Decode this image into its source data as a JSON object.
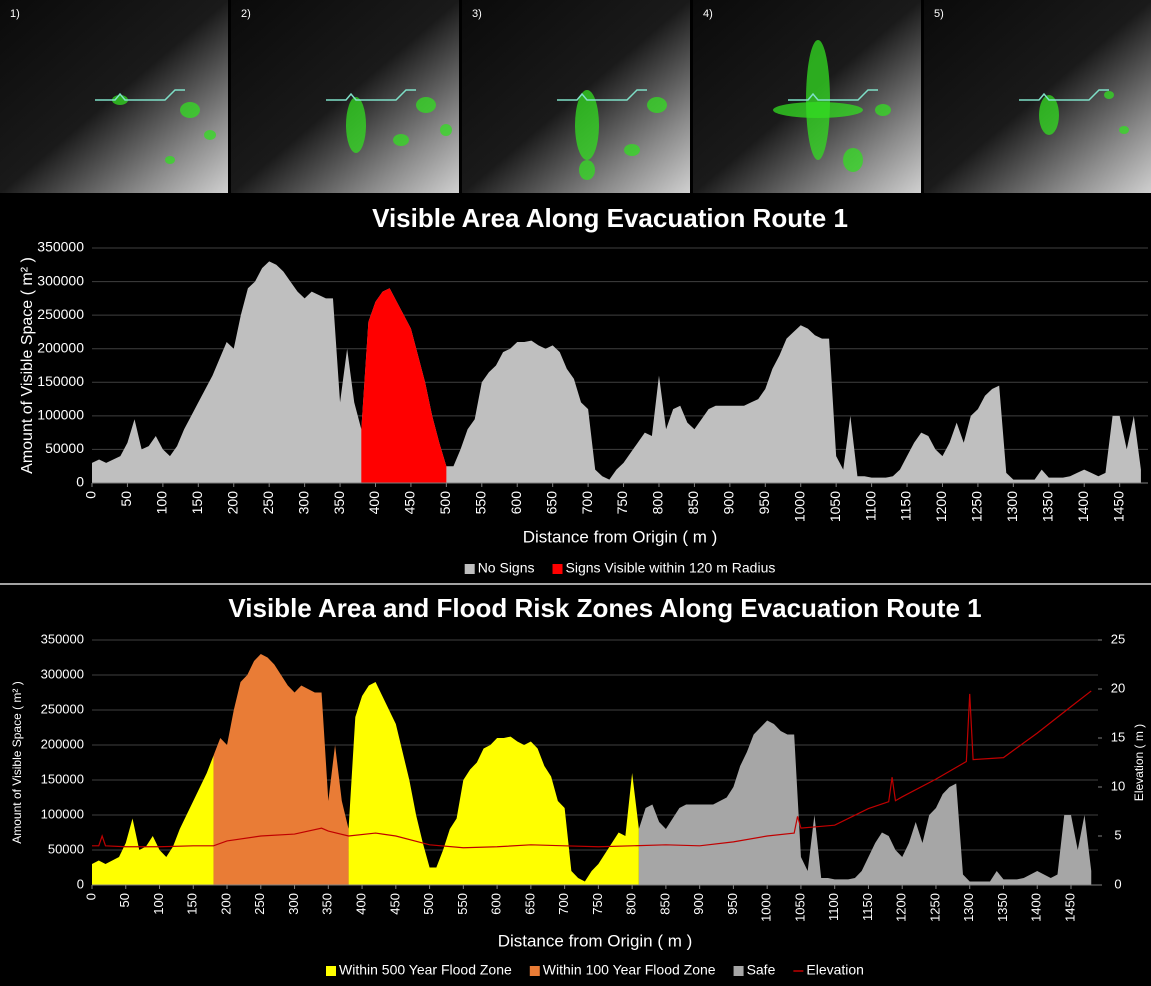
{
  "panels": {
    "labels": [
      "1)",
      "2)",
      "3)",
      "4)",
      "5)"
    ]
  },
  "chart_data": [
    {
      "type": "area",
      "title": "Visible Area Along Evacuation Route 1",
      "x_label": "Distance from Origin ( m )",
      "y_label": "Amount of Visible Space ( m² )",
      "xlim": [
        0,
        1490
      ],
      "xticks": [
        0,
        50,
        100,
        150,
        200,
        250,
        300,
        350,
        400,
        450,
        500,
        550,
        600,
        650,
        700,
        750,
        800,
        850,
        900,
        950,
        1000,
        1050,
        1100,
        1150,
        1200,
        1250,
        1300,
        1350,
        1400,
        1450
      ],
      "ylim": [
        0,
        350000
      ],
      "yticks": [
        0,
        50000,
        100000,
        150000,
        200000,
        250000,
        300000,
        350000
      ],
      "grid": true,
      "legend": "bottom",
      "series": [
        {
          "name": "No Signs",
          "color": "#bfbfbf",
          "x": [
            0,
            10,
            20,
            30,
            40,
            50,
            60,
            70,
            80,
            90,
            100,
            110,
            120,
            130,
            140,
            150,
            160,
            170,
            180,
            190,
            200,
            210,
            220,
            230,
            240,
            250,
            260,
            270,
            280,
            290,
            300,
            310,
            320,
            330,
            340,
            350,
            360,
            370,
            380,
            390,
            400,
            410,
            420,
            430,
            440,
            450,
            460,
            470,
            480,
            490,
            500,
            510,
            520,
            530,
            540,
            550,
            560,
            570,
            580,
            590,
            600,
            610,
            620,
            630,
            640,
            650,
            660,
            670,
            680,
            690,
            700,
            710,
            720,
            730,
            740,
            750,
            760,
            770,
            780,
            790,
            800,
            810,
            820,
            830,
            840,
            850,
            860,
            870,
            880,
            890,
            900,
            910,
            920,
            930,
            940,
            950,
            960,
            970,
            980,
            990,
            1000,
            1010,
            1020,
            1030,
            1040,
            1050,
            1060,
            1070,
            1080,
            1090,
            1100,
            1110,
            1120,
            1130,
            1140,
            1150,
            1160,
            1170,
            1180,
            1190,
            1200,
            1210,
            1220,
            1230,
            1240,
            1250,
            1260,
            1270,
            1280,
            1290,
            1300,
            1310,
            1320,
            1330,
            1340,
            1350,
            1360,
            1370,
            1380,
            1390,
            1400,
            1410,
            1420,
            1430,
            1440,
            1450,
            1460,
            1470,
            1480
          ],
          "values": [
            30000,
            35000,
            30000,
            35000,
            40000,
            60000,
            95000,
            50000,
            55000,
            70000,
            50000,
            40000,
            55000,
            80000,
            100000,
            120000,
            140000,
            160000,
            185000,
            210000,
            200000,
            250000,
            290000,
            300000,
            320000,
            330000,
            325000,
            315000,
            300000,
            285000,
            275000,
            285000,
            280000,
            275000,
            275000,
            120000,
            200000,
            120000,
            80000,
            240000,
            270000,
            285000,
            290000,
            270000,
            250000,
            230000,
            190000,
            150000,
            100000,
            60000,
            25000,
            25000,
            50000,
            80000,
            95000,
            150000,
            165000,
            175000,
            195000,
            200000,
            210000,
            210000,
            212000,
            205000,
            200000,
            205000,
            195000,
            170000,
            155000,
            120000,
            110000,
            20000,
            10000,
            5000,
            20000,
            30000,
            45000,
            60000,
            75000,
            70000,
            160000,
            80000,
            110000,
            115000,
            90000,
            80000,
            95000,
            110000,
            115000,
            115000,
            115000,
            115000,
            115000,
            120000,
            125000,
            140000,
            170000,
            190000,
            215000,
            225000,
            235000,
            230000,
            220000,
            215000,
            215000,
            40000,
            20000,
            100000,
            10000,
            10000,
            8000,
            8000,
            8000,
            10000,
            20000,
            40000,
            60000,
            75000,
            70000,
            50000,
            40000,
            60000,
            90000,
            60000,
            100000,
            110000,
            130000,
            140000,
            145000,
            15000,
            5000,
            5000,
            5000,
            5000,
            20000,
            8000,
            8000,
            8000,
            10000,
            15000,
            20000,
            15000,
            10000,
            15000,
            100000,
            100000,
            50000,
            100000,
            20000
          ]
        },
        {
          "name": "Signs Visible within 120 m Radius",
          "color": "#ff0000",
          "x": [
            380,
            390,
            400,
            410,
            420,
            430,
            440,
            450,
            460,
            470,
            480,
            490,
            500
          ],
          "values": [
            80000,
            240000,
            270000,
            285000,
            290000,
            270000,
            250000,
            230000,
            190000,
            150000,
            100000,
            60000,
            25000
          ]
        }
      ]
    },
    {
      "type": "area",
      "title": "Visible Area and Flood Risk Zones Along Evacuation Route 1",
      "x_label": "Distance from Origin ( m )",
      "y_label": "Amount of Visible Space ( m² )",
      "y2_label": "Elevation ( m )",
      "xlim": [
        0,
        1490
      ],
      "xticks": [
        0,
        50,
        100,
        150,
        200,
        250,
        300,
        350,
        400,
        450,
        500,
        550,
        600,
        650,
        700,
        750,
        800,
        850,
        900,
        950,
        1000,
        1050,
        1100,
        1150,
        1200,
        1250,
        1300,
        1350,
        1400,
        1450
      ],
      "ylim": [
        0,
        350000
      ],
      "yticks": [
        0,
        50000,
        100000,
        150000,
        200000,
        250000,
        300000,
        350000
      ],
      "y2lim": [
        0,
        25
      ],
      "y2ticks": [
        0,
        5,
        10,
        15,
        20,
        25
      ],
      "grid": true,
      "legend": "bottom",
      "series": [
        {
          "name": "Within 500 Year Flood Zone",
          "color": "#ffff00",
          "x": [
            0,
            10,
            20,
            30,
            40,
            50,
            60,
            70,
            80,
            90,
            100,
            110,
            120,
            130,
            140,
            150,
            160,
            170,
            180,
            280,
            380,
            390,
            400,
            410,
            420,
            430,
            440,
            450,
            460,
            470,
            480,
            490,
            500,
            510,
            520,
            530,
            540,
            550,
            560,
            570,
            580,
            590,
            600,
            610,
            620,
            630,
            640,
            650,
            660,
            670,
            680,
            690,
            700,
            710,
            720,
            730,
            740,
            750,
            760,
            770,
            780,
            790,
            800,
            810
          ],
          "values": [
            30000,
            35000,
            30000,
            35000,
            40000,
            60000,
            95000,
            50000,
            55000,
            70000,
            50000,
            40000,
            55000,
            80000,
            100000,
            120000,
            140000,
            160000,
            185000,
            null,
            80000,
            240000,
            270000,
            285000,
            290000,
            270000,
            250000,
            230000,
            190000,
            150000,
            100000,
            60000,
            25000,
            25000,
            50000,
            80000,
            95000,
            150000,
            165000,
            175000,
            195000,
            200000,
            210000,
            210000,
            212000,
            205000,
            200000,
            205000,
            195000,
            170000,
            155000,
            120000,
            110000,
            20000,
            10000,
            5000,
            20000,
            30000,
            45000,
            60000,
            75000,
            70000,
            160000,
            80000
          ]
        },
        {
          "name": "Within 100 Year Flood Zone",
          "color": "#e97c36",
          "x": [
            180,
            190,
            200,
            210,
            220,
            230,
            240,
            250,
            260,
            270,
            280,
            290,
            300,
            310,
            320,
            330,
            340,
            350,
            360,
            370,
            380
          ],
          "values": [
            185000,
            210000,
            200000,
            250000,
            290000,
            300000,
            320000,
            330000,
            325000,
            315000,
            300000,
            285000,
            275000,
            285000,
            280000,
            275000,
            275000,
            120000,
            200000,
            120000,
            80000
          ]
        },
        {
          "name": "Safe",
          "color": "#a6a6a6",
          "x": [
            810,
            820,
            830,
            840,
            850,
            860,
            870,
            880,
            890,
            900,
            910,
            920,
            930,
            940,
            950,
            960,
            970,
            980,
            990,
            1000,
            1010,
            1020,
            1030,
            1040,
            1050,
            1060,
            1070,
            1080,
            1090,
            1100,
            1110,
            1120,
            1130,
            1140,
            1150,
            1160,
            1170,
            1180,
            1190,
            1200,
            1210,
            1220,
            1230,
            1240,
            1250,
            1260,
            1270,
            1280,
            1290,
            1300,
            1310,
            1320,
            1330,
            1340,
            1350,
            1360,
            1370,
            1380,
            1390,
            1400,
            1410,
            1420,
            1430,
            1440,
            1450,
            1460,
            1470,
            1480
          ],
          "values": [
            80000,
            110000,
            115000,
            90000,
            80000,
            95000,
            110000,
            115000,
            115000,
            115000,
            115000,
            115000,
            120000,
            125000,
            140000,
            170000,
            190000,
            215000,
            225000,
            235000,
            230000,
            220000,
            215000,
            215000,
            40000,
            20000,
            100000,
            10000,
            10000,
            8000,
            8000,
            8000,
            10000,
            20000,
            40000,
            60000,
            75000,
            70000,
            50000,
            40000,
            60000,
            90000,
            60000,
            100000,
            110000,
            130000,
            140000,
            145000,
            15000,
            5000,
            5000,
            5000,
            5000,
            20000,
            8000,
            8000,
            8000,
            10000,
            15000,
            20000,
            15000,
            10000,
            15000,
            100000,
            100000,
            50000,
            100000,
            20000
          ]
        },
        {
          "name": "Elevation",
          "color": "#c00000",
          "type": "line",
          "axis": "y2",
          "x": [
            0,
            10,
            15,
            20,
            50,
            100,
            150,
            180,
            200,
            250,
            300,
            340,
            350,
            380,
            420,
            450,
            500,
            550,
            600,
            650,
            700,
            750,
            800,
            850,
            900,
            950,
            1000,
            1040,
            1045,
            1050,
            1100,
            1150,
            1180,
            1185,
            1190,
            1200,
            1250,
            1295,
            1300,
            1305,
            1350,
            1400,
            1450,
            1480
          ],
          "values": [
            4,
            4,
            5,
            4,
            3.9,
            3.9,
            4,
            4,
            4.5,
            5,
            5.2,
            5.8,
            5.5,
            5,
            5.3,
            5,
            4.1,
            3.8,
            3.9,
            4.1,
            4,
            3.9,
            4,
            4.1,
            4,
            4.4,
            5,
            5.3,
            7,
            5.8,
            6.1,
            7.8,
            8.5,
            11,
            8.6,
            9,
            10.8,
            12.6,
            19.5,
            12.8,
            13,
            15.5,
            18.2,
            19.8
          ]
        }
      ]
    }
  ]
}
